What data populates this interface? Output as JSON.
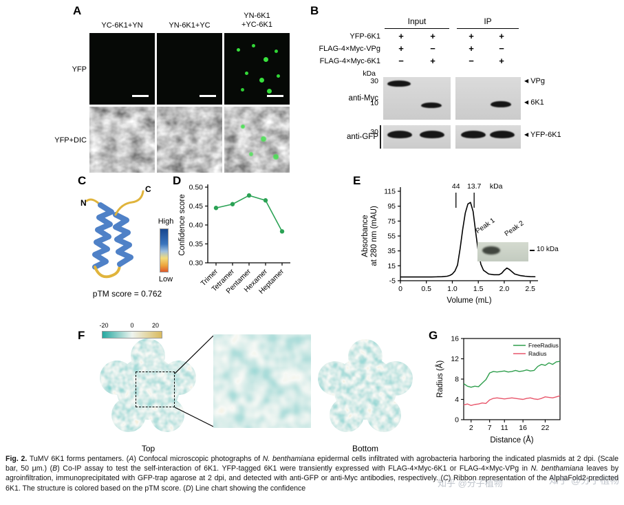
{
  "panels": {
    "A": {
      "label": "A",
      "columns": [
        "YC-6K1+YN",
        "YN-6K1+YC",
        "YN-6K1\n+YC-6K1"
      ],
      "row_labels": [
        "YFP",
        "YFP+DIC"
      ]
    },
    "B": {
      "label": "B",
      "group_headers": [
        "Input",
        "IP"
      ],
      "kda": "kDa",
      "construct_rows": [
        {
          "name": "YFP-6K1",
          "signs": [
            "+",
            "+",
            "+",
            "+"
          ]
        },
        {
          "name": "FLAG-4×Myc-VPg",
          "signs": [
            "+",
            "−",
            "+",
            "−"
          ]
        },
        {
          "name": "FLAG-4×Myc-6K1",
          "signs": [
            "−",
            "+",
            "−",
            "+"
          ]
        }
      ],
      "blots": [
        {
          "antibody": "anti-Myc",
          "markers": [
            "30",
            "10"
          ],
          "band_labels": [
            "VPg",
            "6K1"
          ]
        },
        {
          "antibody": "anti-GFP",
          "markers": [
            "30"
          ],
          "band_labels": [
            "YFP-6K1"
          ]
        }
      ],
      "arrow": "◀"
    },
    "C": {
      "label": "C",
      "n_terminus": "N",
      "c_terminus": "C",
      "scale_high": "High",
      "scale_low": "Low",
      "ptm_score": "pTM score = 0.762"
    },
    "D": {
      "label": "D"
    },
    "E": {
      "label": "E",
      "inset": {
        "peak1": "Peak 1",
        "peak2": "Peak 2",
        "band": "10 kDa"
      }
    },
    "F": {
      "label": "F",
      "scale_ticks": [
        "-20",
        "0",
        "20"
      ],
      "view_labels": [
        "Top",
        "Bottom"
      ]
    },
    "G": {
      "label": "G"
    }
  },
  "chart_data": [
    {
      "id": "confidence",
      "type": "line",
      "categories": [
        "Trimer",
        "Tetramer",
        "Pentamer",
        "Hexamer",
        "Heptamer"
      ],
      "values": [
        0.445,
        0.455,
        0.478,
        0.465,
        0.383
      ],
      "ylabel": "Confidence score",
      "ylim": [
        0.3,
        0.5
      ],
      "yticks": [
        0.3,
        0.35,
        0.4,
        0.45,
        0.5
      ],
      "color": "#2aa254",
      "grid": false,
      "legend_position": "none"
    },
    {
      "id": "sec-chromatogram",
      "type": "line",
      "xlabel": "Volume (mL)",
      "ylabel_line1": "Absorbance",
      "ylabel_line2": "at 280 nm (mAU)",
      "xlim": [
        0,
        2.65
      ],
      "ylim": [
        -5,
        115
      ],
      "yticks": [
        -5,
        15,
        35,
        55,
        75,
        95,
        115
      ],
      "xticks": [
        0,
        0.5,
        1.0,
        1.5,
        2.0,
        2.5
      ],
      "color": "#000000",
      "x": [
        0,
        0.1,
        0.2,
        0.3,
        0.4,
        0.5,
        0.6,
        0.7,
        0.8,
        0.9,
        0.95,
        1.0,
        1.05,
        1.1,
        1.15,
        1.2,
        1.25,
        1.3,
        1.35,
        1.4,
        1.45,
        1.5,
        1.55,
        1.6,
        1.7,
        1.8,
        1.9,
        1.95,
        2.0,
        2.05,
        2.1,
        2.15,
        2.2,
        2.3,
        2.4,
        2.5,
        2.6
      ],
      "y": [
        0,
        0,
        0,
        0,
        0,
        0,
        0,
        0.2,
        0.4,
        1,
        2,
        4,
        8,
        16,
        38,
        64,
        86,
        98,
        100,
        88,
        60,
        34,
        17,
        9,
        4,
        3,
        3,
        5,
        9,
        12,
        10,
        7,
        4,
        2,
        1,
        0.5,
        0.3
      ],
      "annotations": {
        "kda": "kDa",
        "markers": [
          {
            "label": "44",
            "x": 1.07
          },
          {
            "label": "13.7",
            "x": 1.42
          }
        ]
      }
    },
    {
      "id": "pore-radius",
      "type": "line",
      "xlabel": "Distance (Å)",
      "ylabel": "Radius (Å)",
      "xlim": [
        0,
        26
      ],
      "ylim": [
        0,
        16
      ],
      "yticks": [
        0,
        4,
        8,
        12,
        16
      ],
      "xticks": [
        2,
        7,
        11,
        16,
        22
      ],
      "legend_position": "top-right",
      "series": [
        {
          "name": "FreeRadius",
          "color": "#2e9e4c",
          "x": [
            0,
            1,
            2,
            3,
            4,
            5,
            6,
            7,
            8,
            9,
            10,
            11,
            12,
            13,
            14,
            15,
            16,
            17,
            18,
            19,
            20,
            21,
            22,
            23,
            24,
            25,
            26
          ],
          "values": [
            7.1,
            6.6,
            6.4,
            6.6,
            6.5,
            7.2,
            7.9,
            9.2,
            9.5,
            9.4,
            9.5,
            9.6,
            9.4,
            9.5,
            9.7,
            9.5,
            9.6,
            9.8,
            9.6,
            9.7,
            10.5,
            10.9,
            10.7,
            11.2,
            10.9,
            11.4,
            11.5
          ]
        },
        {
          "name": "Radius",
          "color": "#e8556a",
          "x": [
            0,
            1,
            2,
            3,
            4,
            5,
            6,
            7,
            8,
            9,
            10,
            11,
            12,
            13,
            14,
            15,
            16,
            17,
            18,
            19,
            20,
            21,
            22,
            23,
            24,
            25,
            26
          ],
          "values": [
            2.9,
            3.1,
            2.8,
            3.0,
            3.1,
            3.3,
            3.2,
            3.9,
            4.2,
            4.3,
            4.2,
            4.1,
            4.2,
            4.3,
            4.2,
            4.1,
            4.0,
            4.2,
            4.3,
            4.1,
            4.0,
            4.2,
            4.5,
            4.4,
            4.3,
            4.5,
            4.7
          ]
        }
      ]
    }
  ],
  "caption": {
    "segments": [
      {
        "t": "Fig. 2.",
        "b": 1
      },
      {
        "t": "  TuMV 6K1 forms pentamers. ("
      },
      {
        "t": "A",
        "i": 1
      },
      {
        "t": ") Confocal microscopic photographs of "
      },
      {
        "t": "N. benthamiana",
        "i": 1
      },
      {
        "t": " epidermal cells infiltrated with agrobacteria harboring the indicated plasmids at 2 dpi. (Scale bar, 50 μm.) ("
      },
      {
        "t": "B",
        "i": 1
      },
      {
        "t": ") Co-IP assay to test the self-interaction of 6K1. YFP-tagged 6K1 were transiently expressed with FLAG-4×Myc-6K1 or FLAG-4×Myc-VPg in "
      },
      {
        "t": "N. benthamiana",
        "i": 1
      },
      {
        "t": " leaves by agroinfiltration, immunoprecipitated with GFP-trap agarose at 2 dpi, and detected with anti-GFP or anti-Myc antibodies, respectively. ("
      },
      {
        "t": "C",
        "i": 1
      },
      {
        "t": ") Ribbon representation of the AlphaFold2-predicted 6K1. The structure is colored based on the pTM score. ("
      },
      {
        "t": "D",
        "i": 1
      },
      {
        "t": ") Line chart showing the confidence"
      }
    ]
  },
  "watermark": {
    "w1": "知乎 @分子植物",
    "w2": "知乎 @分子植物"
  },
  "colors": {
    "teal": "#25a8a0",
    "tan": "#d9ba5e",
    "helix_blue": "#4f81c7",
    "loop_yellow": "#e0b43c",
    "puncta_green": "#38df3d"
  }
}
